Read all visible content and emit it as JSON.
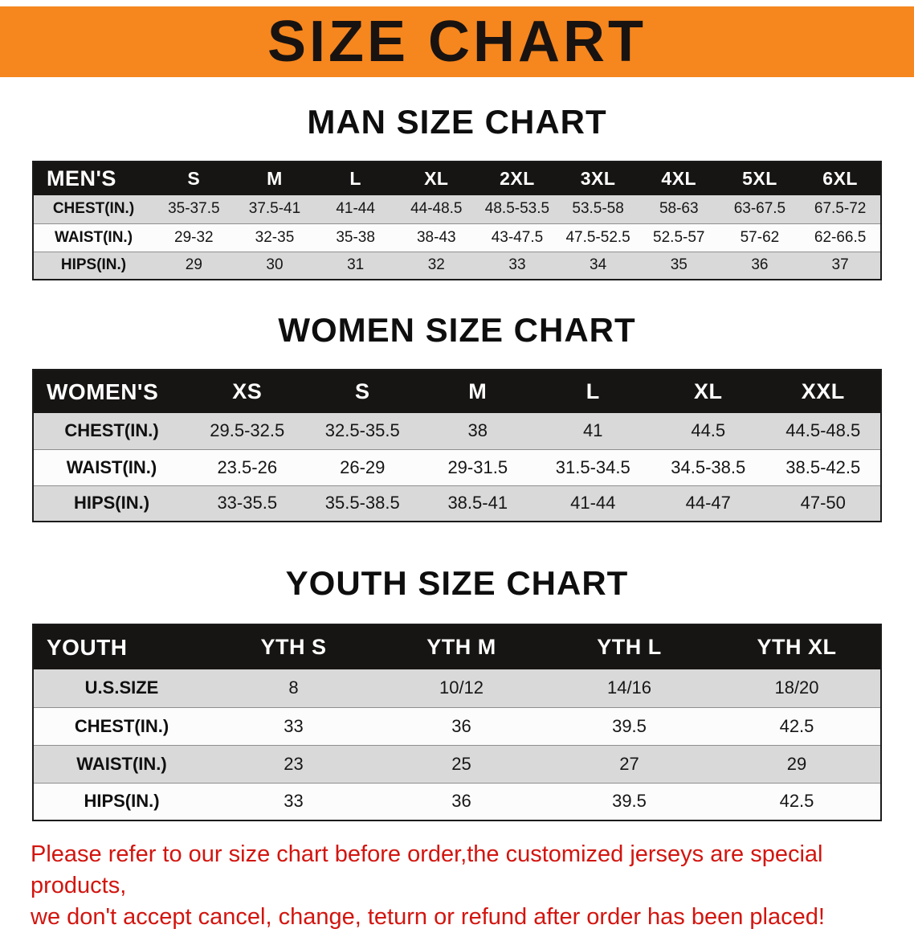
{
  "banner": {
    "title": "SIZE CHART",
    "bg_color": "#F6861E"
  },
  "colors": {
    "banner_bg": "#F6861E",
    "table_header_bg": "#171513",
    "row_shade": "#d9d9d9",
    "disclaimer_text": "#d2150f"
  },
  "men": {
    "heading": "MAN SIZE CHART",
    "header": [
      "MEN'S",
      "S",
      "M",
      "L",
      "XL",
      "2XL",
      "3XL",
      "4XL",
      "5XL",
      "6XL"
    ],
    "rows": [
      {
        "label": "CHEST(IN.)",
        "values": [
          "35-37.5",
          "37.5-41",
          "41-44",
          "44-48.5",
          "48.5-53.5",
          "53.5-58",
          "58-63",
          "63-67.5",
          "67.5-72"
        ]
      },
      {
        "label": "WAIST(IN.)",
        "values": [
          "29-32",
          "32-35",
          "35-38",
          "38-43",
          "43-47.5",
          "47.5-52.5",
          "52.5-57",
          "57-62",
          "62-66.5"
        ]
      },
      {
        "label": "HIPS(IN.)",
        "values": [
          "29",
          "30",
          "31",
          "32",
          "33",
          "34",
          "35",
          "36",
          "37"
        ]
      }
    ]
  },
  "women": {
    "heading": "WOMEN SIZE CHART",
    "header": [
      "WOMEN'S",
      "XS",
      "S",
      "M",
      "L",
      "XL",
      "XXL"
    ],
    "rows": [
      {
        "label": "CHEST(IN.)",
        "values": [
          "29.5-32.5",
          "32.5-35.5",
          "38",
          "41",
          "44.5",
          "44.5-48.5"
        ]
      },
      {
        "label": "WAIST(IN.)",
        "values": [
          "23.5-26",
          "26-29",
          "29-31.5",
          "31.5-34.5",
          "34.5-38.5",
          "38.5-42.5"
        ]
      },
      {
        "label": "HIPS(IN.)",
        "values": [
          "33-35.5",
          "35.5-38.5",
          "38.5-41",
          "41-44",
          "44-47",
          "47-50"
        ]
      }
    ]
  },
  "youth": {
    "heading": "YOUTH SIZE CHART",
    "header": [
      "YOUTH",
      "YTH S",
      "YTH M",
      "YTH L",
      "YTH XL"
    ],
    "rows": [
      {
        "label": "U.S.SIZE",
        "values": [
          "8",
          "10/12",
          "14/16",
          "18/20"
        ]
      },
      {
        "label": "CHEST(IN.)",
        "values": [
          "33",
          "36",
          "39.5",
          "42.5"
        ]
      },
      {
        "label": "WAIST(IN.)",
        "values": [
          "23",
          "25",
          "27",
          "29"
        ]
      },
      {
        "label": "HIPS(IN.)",
        "values": [
          "33",
          "36",
          "39.5",
          "42.5"
        ]
      }
    ]
  },
  "disclaimer": {
    "line1": "Please refer to our size chart before order,the customized jerseys are special products,",
    "line2": "we don't accept cancel, change, teturn or refund after order has been placed!"
  }
}
